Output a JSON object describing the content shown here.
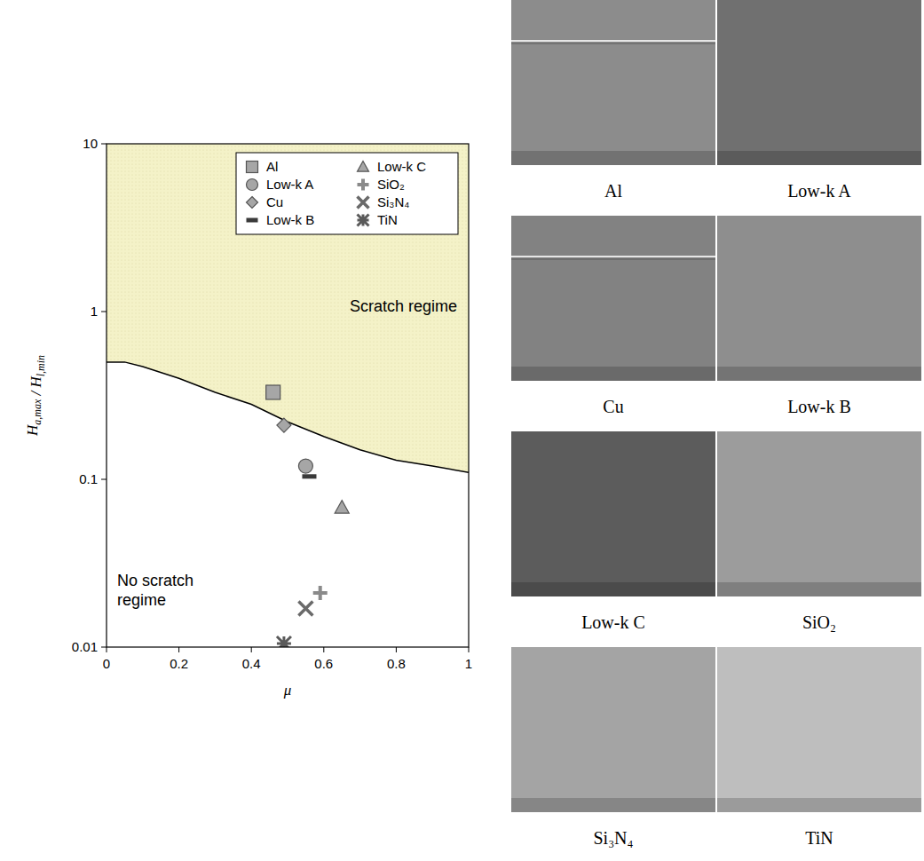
{
  "chart_data": {
    "type": "scatter",
    "x_label": "μ",
    "y_label": "Ha,max / Hl,min",
    "xlim": [
      0,
      1
    ],
    "xticks": [
      0,
      0.2,
      0.4,
      0.6,
      0.8,
      1
    ],
    "ylim": [
      0.01,
      10
    ],
    "yticks": [
      0.01,
      0.1,
      1,
      10
    ],
    "log": "y",
    "grid": false,
    "legend": "top-right",
    "series": [
      {
        "name": "Al",
        "color": "#a6a6a6",
        "marker": "square",
        "x": [
          0.46
        ],
        "values": [
          0.33
        ]
      },
      {
        "name": "Low-k A",
        "color": "#a6a6a6",
        "marker": "circle",
        "x": [
          0.55
        ],
        "values": [
          0.12
        ]
      },
      {
        "name": "Cu",
        "color": "#a6a6a6",
        "marker": "diamond",
        "x": [
          0.49
        ],
        "values": [
          0.21
        ]
      },
      {
        "name": "Low-k B",
        "color": "#3a3a3a",
        "marker": "dash",
        "x": [
          0.56
        ],
        "values": [
          0.104
        ]
      },
      {
        "name": "Low-k C",
        "color": "#a6a6a6",
        "marker": "triangle",
        "x": [
          0.65
        ],
        "values": [
          0.068
        ]
      },
      {
        "name": "SiO₂",
        "color": "#8a8a8a",
        "marker": "plus",
        "x": [
          0.59
        ],
        "values": [
          0.021
        ]
      },
      {
        "name": "Si₃N₄",
        "color": "#6a6a6a",
        "marker": "x",
        "x": [
          0.55
        ],
        "values": [
          0.017
        ]
      },
      {
        "name": "TiN",
        "color": "#5a5a5a",
        "marker": "asterisk",
        "x": [
          0.49
        ],
        "values": [
          0.0105
        ]
      }
    ],
    "boundary": {
      "type": "line",
      "color": "#000000",
      "x": [
        0,
        0.05,
        0.1,
        0.2,
        0.3,
        0.4,
        0.5,
        0.6,
        0.7,
        0.8,
        0.9,
        1
      ],
      "values": [
        0.5,
        0.5,
        0.47,
        0.4,
        0.33,
        0.28,
        0.22,
        0.18,
        0.15,
        0.13,
        0.12,
        0.11
      ]
    },
    "regions": [
      {
        "label": "Scratch regime",
        "color": "#f4f2c8",
        "x": 0.82,
        "y": 1
      },
      {
        "label": "No scratch regime",
        "color": "#ffffff",
        "x": 0.15,
        "y": 0.02
      }
    ]
  },
  "sem_images": {
    "panels": [
      {
        "label": "Al",
        "color": "#8c8c8c",
        "scratch_visible": true
      },
      {
        "label": "Low-k A",
        "color": "#707070",
        "scratch_visible": false
      },
      {
        "label": "Cu",
        "color": "#828282",
        "scratch_visible": true
      },
      {
        "label": "Low-k B",
        "color": "#8e8e8e",
        "scratch_visible": false
      },
      {
        "label": "Low-k C",
        "color": "#5c5c5c",
        "scratch_visible": false
      },
      {
        "label": "SiO₂",
        "color": "#9c9c9c",
        "scratch_visible": false
      },
      {
        "label": "Si₃N₄",
        "color": "#a4a4a4",
        "scratch_visible": false
      },
      {
        "label": "TiN",
        "color": "#bebebe",
        "scratch_visible": false
      }
    ]
  }
}
